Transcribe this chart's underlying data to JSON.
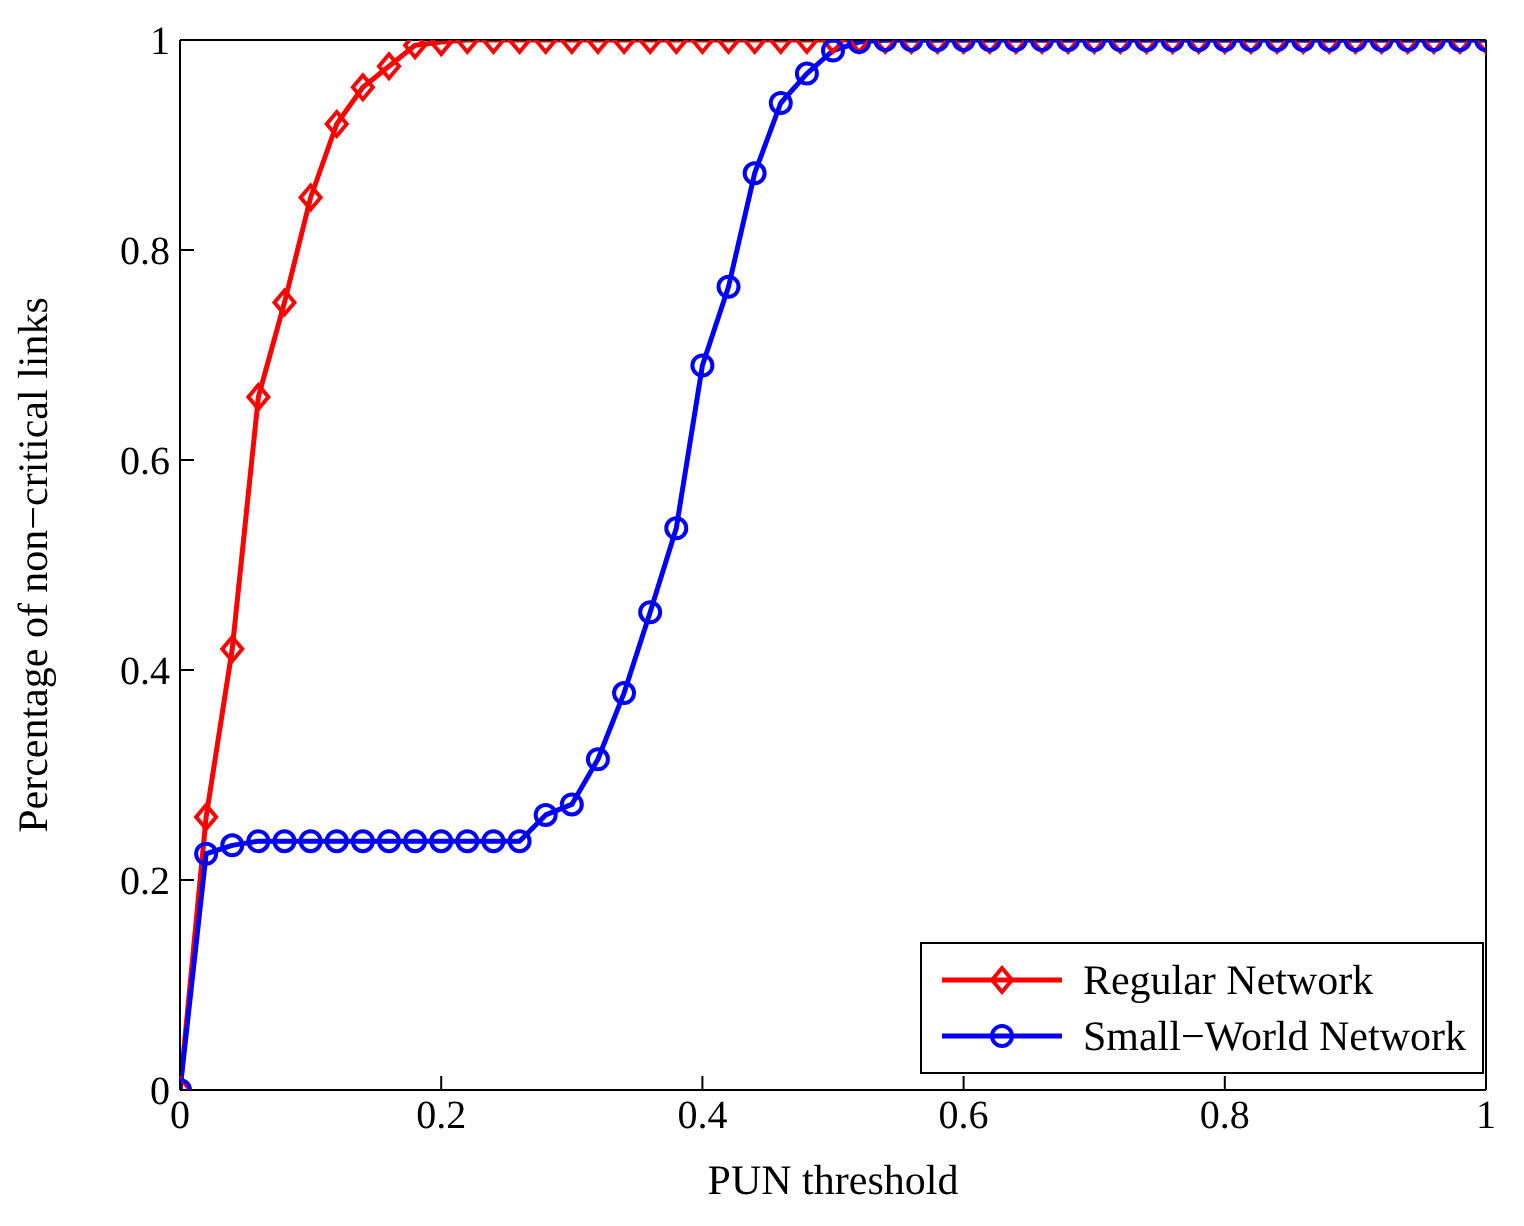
{
  "chart_data": {
    "type": "line",
    "xlabel": "PUN threshold",
    "ylabel": "Percentage of non−critical links",
    "x": [
      0,
      0.02,
      0.04,
      0.06,
      0.08,
      0.1,
      0.12,
      0.14,
      0.16,
      0.18,
      0.2,
      0.22,
      0.24,
      0.26,
      0.28,
      0.3,
      0.32,
      0.34,
      0.36,
      0.38,
      0.4,
      0.42,
      0.44,
      0.46,
      0.48,
      0.5,
      0.52,
      0.54,
      0.56,
      0.58,
      0.6,
      0.62,
      0.64,
      0.66,
      0.68,
      0.7,
      0.72,
      0.74,
      0.76,
      0.78,
      0.8,
      0.82,
      0.84,
      0.86,
      0.88,
      0.9,
      0.92,
      0.94,
      0.96,
      0.98,
      1
    ],
    "series": [
      {
        "name": "Regular Network",
        "color": "#ff0000",
        "marker": "diamond",
        "values": [
          0,
          0.26,
          0.42,
          0.66,
          0.75,
          0.85,
          0.92,
          0.955,
          0.975,
          0.995,
          0.998,
          1,
          1,
          1,
          1,
          1,
          1,
          1,
          1,
          1,
          1,
          1,
          1,
          1,
          1,
          1,
          1,
          1,
          1,
          1,
          1,
          1,
          1,
          1,
          1,
          1,
          1,
          1,
          1,
          1,
          1,
          1,
          1,
          1,
          1,
          1,
          1,
          1,
          1,
          1,
          1
        ]
      },
      {
        "name": "Small−World Network",
        "color": "#0000ff",
        "marker": "circle",
        "values": [
          0,
          0.225,
          0.233,
          0.237,
          0.237,
          0.237,
          0.237,
          0.237,
          0.237,
          0.237,
          0.237,
          0.237,
          0.237,
          0.237,
          0.262,
          0.272,
          0.315,
          0.378,
          0.455,
          0.535,
          0.69,
          0.765,
          0.873,
          0.94,
          0.968,
          0.99,
          0.998,
          1,
          1,
          1,
          1,
          1,
          1,
          1,
          1,
          1,
          1,
          1,
          1,
          1,
          1,
          1,
          1,
          1,
          1,
          1,
          1,
          1,
          1,
          1,
          1
        ]
      }
    ],
    "xlim": [
      0,
      1
    ],
    "xticks": [
      0,
      0.2,
      0.4,
      0.6,
      0.8,
      1
    ],
    "ylim": [
      0,
      1
    ],
    "yticks": [
      0,
      0.2,
      0.4,
      0.6,
      0.8,
      1
    ],
    "grid": false,
    "legend": "bottom right",
    "line_style": "solid"
  }
}
